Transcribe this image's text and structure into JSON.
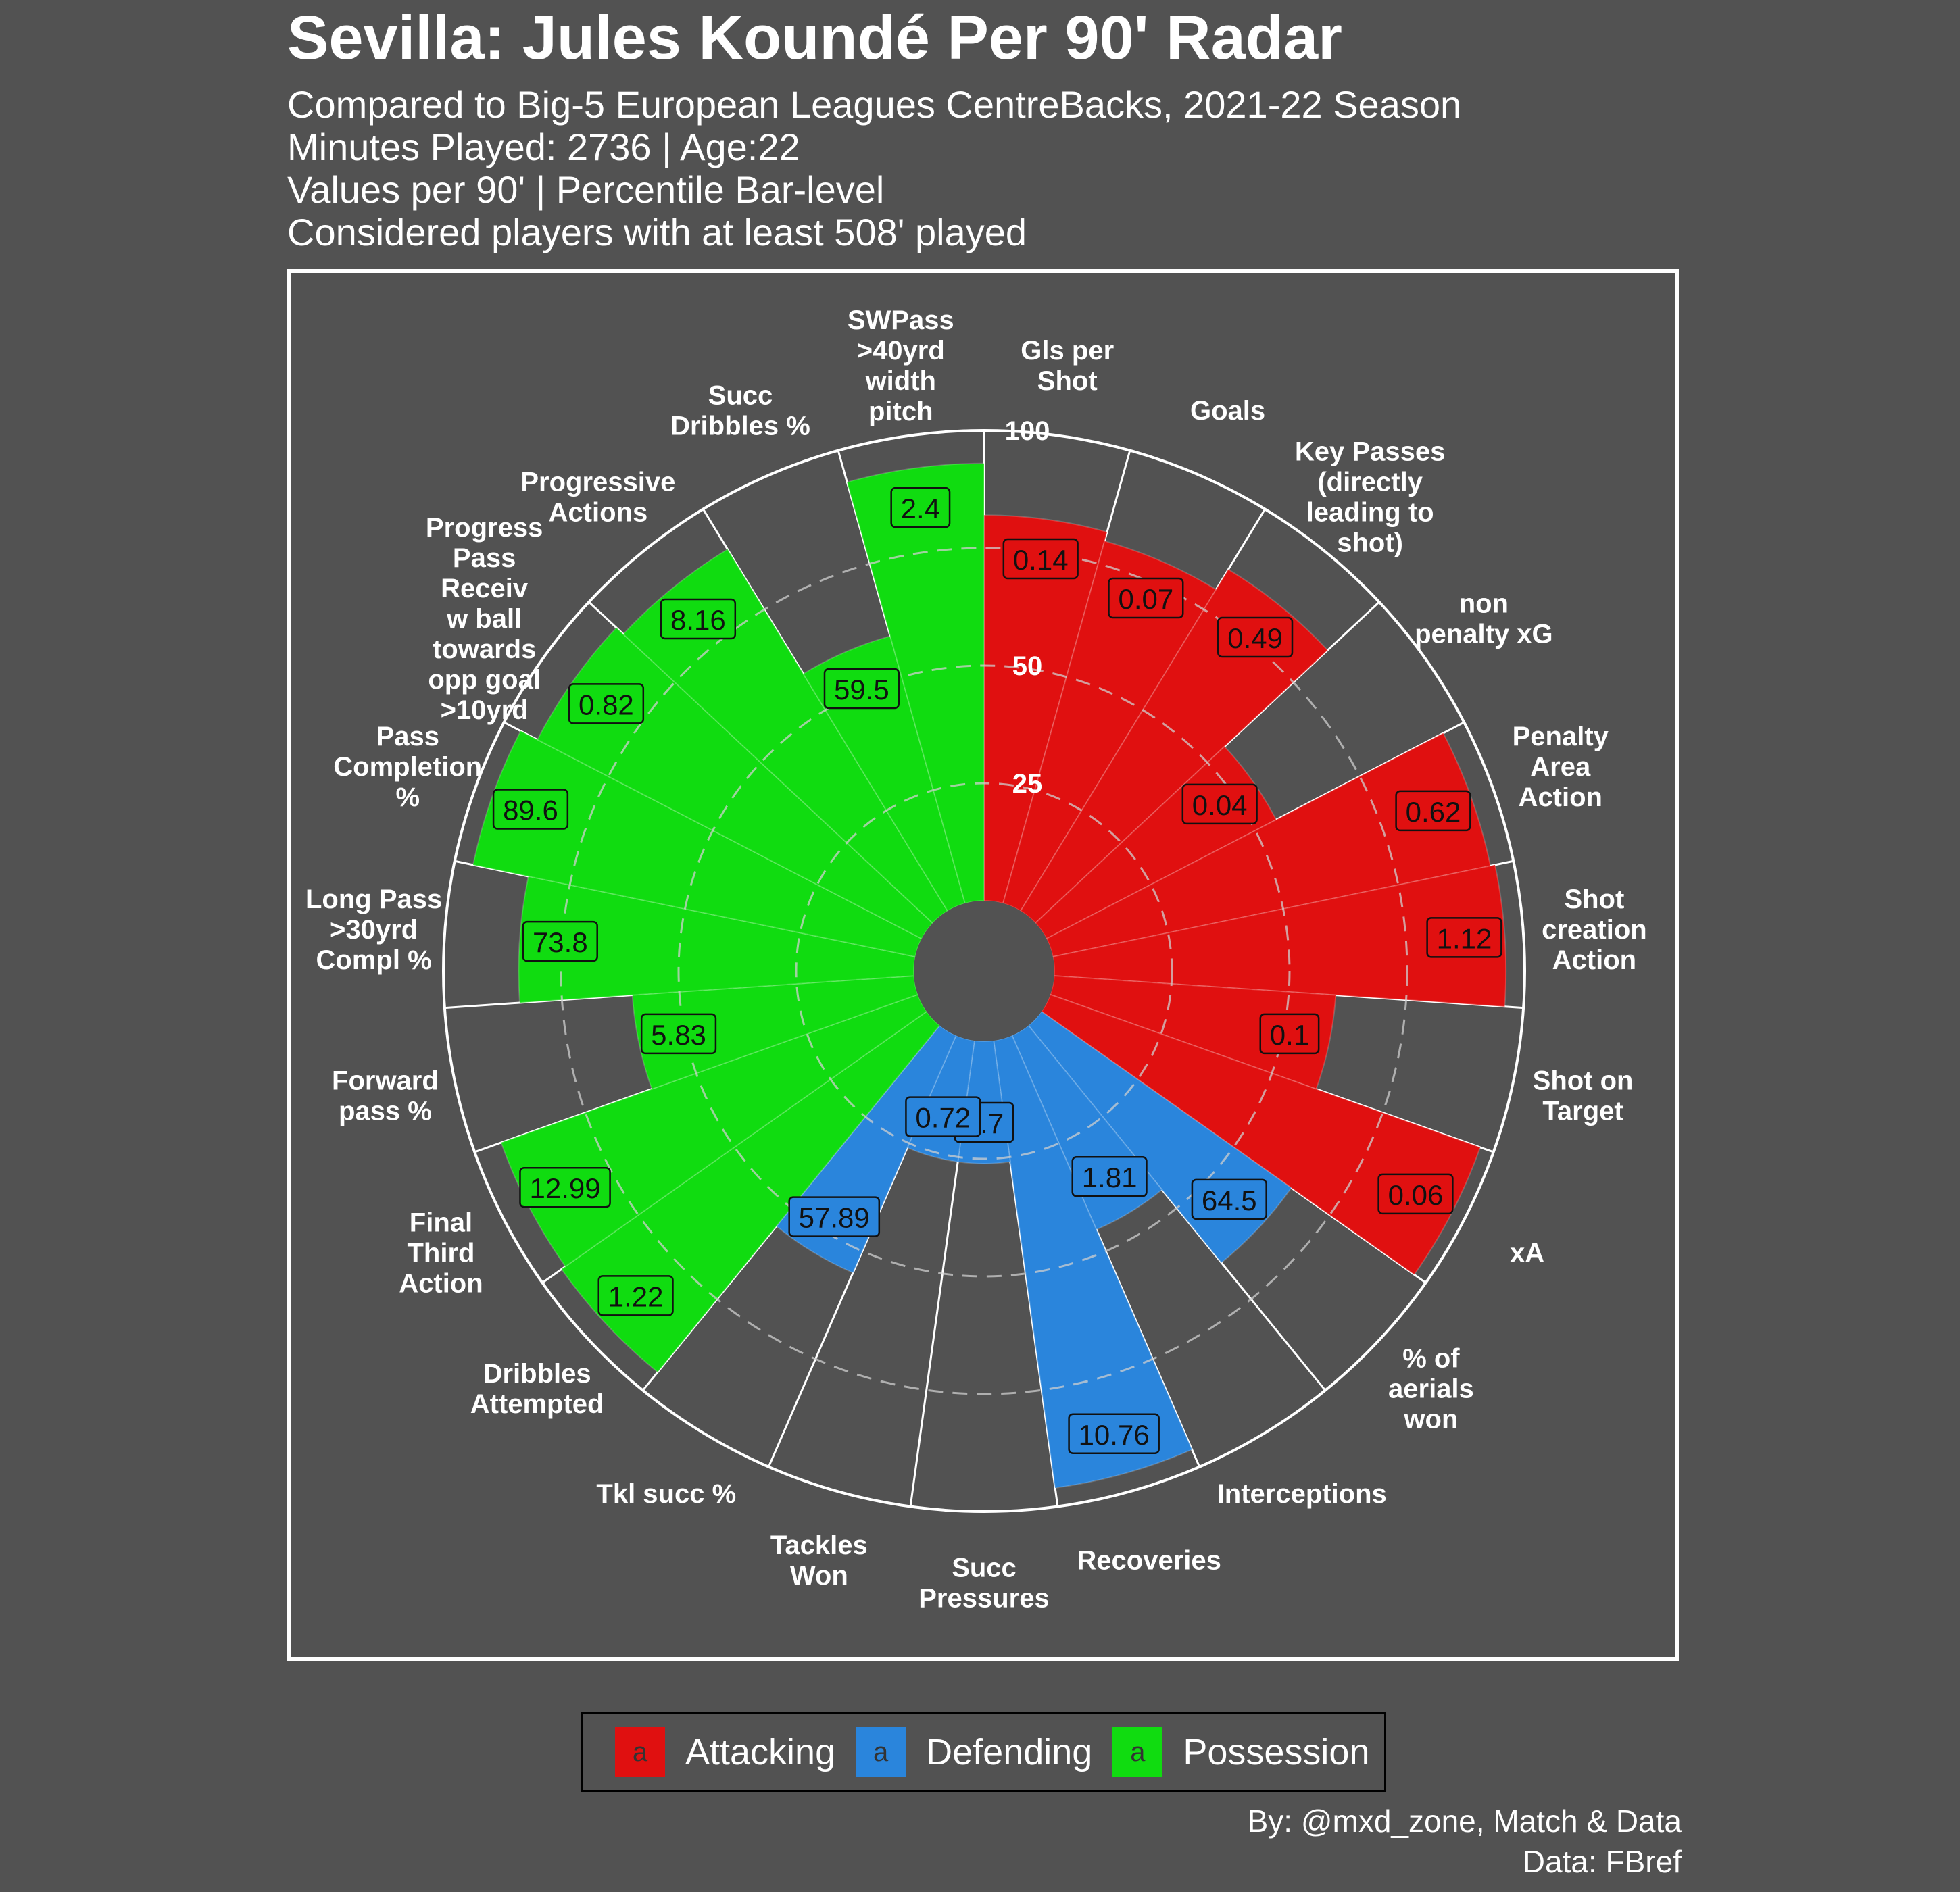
{
  "title": "Sevilla: Jules Koundé Per 90' Radar",
  "subtitle_lines": [
    "Compared to Big-5 European Leagues CentreBacks, 2021-22 Season",
    "Minutes Played: 2736 | Age:22",
    "Values per 90' | Percentile Bar-level",
    "Considered players with at least 508' played"
  ],
  "credits": [
    "By: @mxd_zone, Match & Data",
    "Data: FBref"
  ],
  "colors": {
    "Attacking": "#e01010",
    "Defending": "#2a85dc",
    "Possession": "#10dc10",
    "background": "#525252",
    "grid": "#ffffff"
  },
  "chart_data": {
    "type": "radial-bar",
    "radial_ticks": [
      25,
      50,
      75,
      100
    ],
    "r_range": [
      0,
      100
    ],
    "legend": {
      "position": "bottom",
      "entries": [
        "Attacking",
        "Defending",
        "Possession"
      ],
      "key_glyph": "a"
    },
    "categories": [
      {
        "label": "Gls per\nShot",
        "group": "Attacking",
        "value_label": "0.14",
        "percentile": 82
      },
      {
        "label": "Goals",
        "group": "Attacking",
        "value_label": "0.07",
        "percentile": 80
      },
      {
        "label": "Key Passes\n(directly\nleading to\nshot)",
        "group": "Attacking",
        "value_label": "0.49",
        "percentile": 85
      },
      {
        "label": "non\npenalty xG",
        "group": "Attacking",
        "value_label": "0.04",
        "percentile": 55
      },
      {
        "label": "Penalty\nArea\nAction",
        "group": "Attacking",
        "value_label": "0.62",
        "percentile": 95
      },
      {
        "label": "Shot\ncreation\nAction",
        "group": "Attacking",
        "value_label": "1.12",
        "percentile": 96
      },
      {
        "label": "Shot on\nTarget",
        "group": "Attacking",
        "value_label": "0.1",
        "percentile": 60
      },
      {
        "label": "xA",
        "group": "Attacking",
        "value_label": "0.06",
        "percentile": 97
      },
      {
        "label": "% of\naerials\nwon",
        "group": "Defending",
        "value_label": "64.5",
        "percentile": 65
      },
      {
        "label": "Interceptions",
        "group": "Defending",
        "value_label": "1.81",
        "percentile": 45
      },
      {
        "label": "Recoveries",
        "group": "Defending",
        "value_label": "10.76",
        "percentile": 96
      },
      {
        "label": "Succ\nPressures",
        "group": "Defending",
        "value_label": "2.7",
        "percentile": 26
      },
      {
        "label": "Tackles\nWon",
        "group": "Defending",
        "value_label": "0.72",
        "percentile": 26
      },
      {
        "label": "Tkl succ %",
        "group": "Defending",
        "value_label": "57.89",
        "percentile": 55
      },
      {
        "label": "Dribbles\nAttempted",
        "group": "Possession",
        "value_label": "1.22",
        "percentile": 95
      },
      {
        "label": "Final\nThird\nAction",
        "group": "Possession",
        "value_label": "12.99",
        "percentile": 94
      },
      {
        "label": "Forward\npass %",
        "group": "Possession",
        "value_label": "5.83",
        "percentile": 60
      },
      {
        "label": "Long Pass\n>30yrd\nCompl %",
        "group": "Possession",
        "value_label": "73.8",
        "percentile": 84
      },
      {
        "label": "Pass\nCompletion\n%",
        "group": "Possession",
        "value_label": "89.6",
        "percentile": 96
      },
      {
        "label": "Progress\nPass\nReceiv\nw ball\ntowards\nopp goal\n>10yrd",
        "group": "Possession",
        "value_label": "0.82",
        "percentile": 92
      },
      {
        "label": "Progressive\nActions",
        "group": "Possession",
        "value_label": "8.16",
        "percentile": 90
      },
      {
        "label": "Succ\nDribbles %",
        "group": "Possession",
        "value_label": "59.5",
        "percentile": 59
      },
      {
        "label": "SWPass\n>40yrd\nwidth\npitch",
        "group": "Possession",
        "value_label": "2.4",
        "percentile": 93
      }
    ]
  }
}
